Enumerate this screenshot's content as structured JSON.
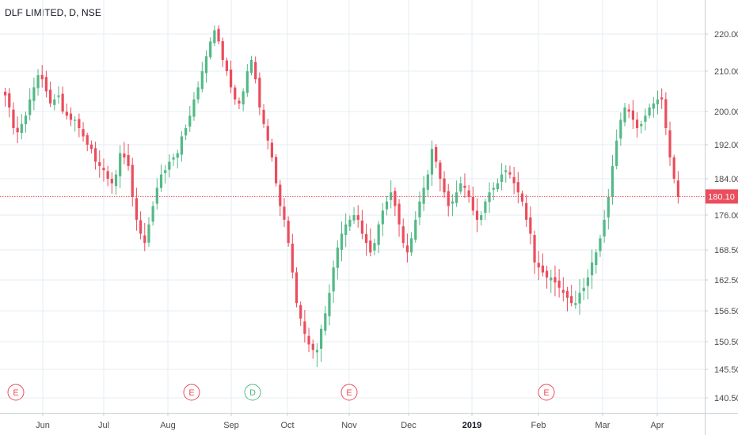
{
  "header": {
    "title": "DLF LIMITED, D, NSE"
  },
  "colors": {
    "up": "#53b987",
    "down": "#eb4d5c",
    "grid": "#e6eef3",
    "axis": "#c9cfd6",
    "last_price_bg": "#eb4d5c",
    "dividend": "#53b987"
  },
  "chart_data": {
    "type": "candlestick",
    "title": "DLF LIMITED, D, NSE",
    "y_axis": {
      "position": "right",
      "ticks": [
        "220.00",
        "210.00",
        "200.00",
        "192.00",
        "184.00",
        "176.00",
        "168.50",
        "162.50",
        "156.50",
        "150.50",
        "145.50",
        "140.50"
      ]
    },
    "x_axis": {
      "ticks": [
        "Jun",
        "Jul",
        "Aug",
        "Sep",
        "Oct",
        "Nov",
        "Dec",
        "2019",
        "Feb",
        "Mar",
        "Apr"
      ],
      "bold_ticks": [
        "2019"
      ]
    },
    "last_price": "180.10",
    "events": [
      {
        "label": "E",
        "type": "earnings"
      },
      {
        "label": "E",
        "type": "earnings"
      },
      {
        "label": "D",
        "type": "dividend"
      },
      {
        "label": "E",
        "type": "earnings"
      },
      {
        "label": "E",
        "type": "earnings"
      }
    ],
    "closes": [
      204,
      201,
      196,
      195,
      197,
      199,
      203,
      206,
      209,
      208,
      205,
      202,
      203,
      204,
      200,
      199,
      198,
      198,
      196,
      194,
      192,
      191,
      188,
      187,
      186,
      184,
      183,
      185,
      190,
      189,
      187,
      180,
      175,
      172,
      170,
      174,
      178,
      182,
      185,
      186,
      188,
      189,
      190,
      194,
      196,
      199,
      203,
      206,
      210,
      214,
      218,
      221,
      218,
      213,
      210,
      206,
      203,
      202,
      205,
      210,
      213,
      208,
      201,
      197,
      193,
      189,
      183,
      178,
      175,
      170,
      164,
      158,
      155,
      152,
      150,
      149,
      149,
      153,
      156,
      160,
      165,
      169,
      172,
      174,
      175,
      176,
      175,
      172,
      170,
      168,
      170,
      174,
      177,
      179,
      181,
      178,
      174,
      170,
      168,
      171,
      175,
      179,
      182,
      185,
      191,
      188,
      184,
      181,
      178,
      179,
      181,
      183,
      182,
      180,
      177,
      175,
      176,
      179,
      181,
      182,
      183,
      185,
      186,
      185,
      183,
      181,
      179,
      175,
      172,
      166,
      165,
      164,
      163,
      163,
      162,
      161,
      160,
      159,
      158,
      158,
      160,
      161,
      163,
      166,
      168,
      171,
      175,
      180,
      187,
      193,
      198,
      201,
      200,
      198,
      196,
      197,
      199,
      201,
      202,
      203,
      203,
      196,
      189,
      184,
      180
    ]
  }
}
